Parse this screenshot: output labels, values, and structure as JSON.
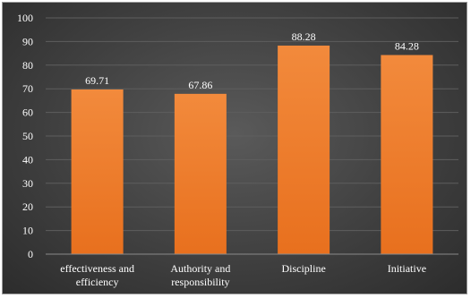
{
  "chart_data": {
    "type": "bar",
    "categories": [
      [
        "effectiveness and",
        "efficiency"
      ],
      [
        "Authority and",
        "responsibility"
      ],
      [
        "Discipline"
      ],
      [
        "Initiative"
      ]
    ],
    "values": [
      69.71,
      67.86,
      88.28,
      84.28
    ],
    "value_labels": [
      "69.71",
      "67.86",
      "88.28",
      "84.28"
    ],
    "title": "",
    "xlabel": "",
    "ylabel": "",
    "ylim": [
      0,
      100
    ],
    "yticks": [
      0,
      10,
      20,
      30,
      40,
      50,
      60,
      70,
      80,
      90,
      100
    ],
    "grid": true,
    "legend": "none",
    "colors": {
      "bar_top": "#f28a3c",
      "bar_bottom": "#e8701e",
      "grid": "#5e5e5e",
      "axis": "#8a8a8a",
      "text": "#ffffff"
    }
  }
}
